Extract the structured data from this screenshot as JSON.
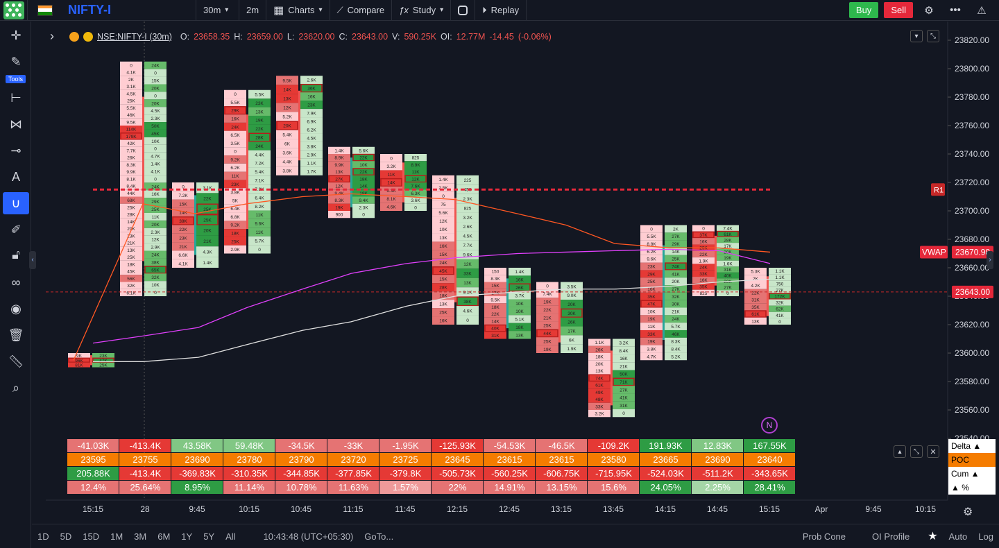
{
  "topbar": {
    "symbol": "NIFTY-I",
    "interval": "30m",
    "interval2": "2m",
    "charts_label": "Charts",
    "compare_label": "Compare",
    "study_label": "Study",
    "replay_label": "Replay",
    "buy_label": "Buy",
    "sell_label": "Sell",
    "flag_colors": [
      "#ff9933",
      "#ffffff",
      "#138808"
    ]
  },
  "left_toolbar": {
    "tools_label": "Tools",
    "icons": [
      "crosshair-icon",
      "pencil-icon",
      "fib-icon",
      "pattern-icon",
      "line-icon",
      "text-icon",
      "magnet-icon",
      "brush-icon",
      "lock-icon",
      "link-icon",
      "eye-icon",
      "trash-icon",
      "ruler-icon",
      "zoom-icon"
    ]
  },
  "legend": {
    "symbol": "NSE:NIFTY-I (30m)",
    "o_label": "O:",
    "o": "23658.35",
    "h_label": "H:",
    "h": "23659.00",
    "l_label": "L:",
    "l": "23620.00",
    "c_label": "C:",
    "c": "23643.00",
    "v_label": "V:",
    "v": "590.25K",
    "oi_label": "OI:",
    "oi": "12.77M",
    "chg": "-14.45",
    "chg_pct": "(-0.06%)"
  },
  "price_axis": {
    "labels": [
      "23820.00",
      "23800.00",
      "23780.00",
      "23760.00",
      "23740.00",
      "23720.00",
      "23700.00",
      "23680.00",
      "23660.00",
      "23640.00",
      "23620.00",
      "23600.00",
      "23580.00",
      "23560.00",
      "23540.00"
    ],
    "vwap_label": "VWAP",
    "vwap_value": "23670.98",
    "last_price": "23643.00",
    "r1_label": "R1"
  },
  "time_axis": [
    "15:15",
    "28",
    "9:45",
    "10:15",
    "10:45",
    "11:15",
    "11:45",
    "12:15",
    "12:45",
    "13:15",
    "13:45",
    "14:15",
    "14:45",
    "15:15",
    "Apr",
    "9:45",
    "10:15"
  ],
  "table": {
    "row_labels": [
      "Delta ▲",
      "POC",
      "Cum ▲",
      "▲ %"
    ],
    "delta": [
      "-41.03K",
      "-413.4K",
      "43.58K",
      "59.48K",
      "-34.5K",
      "-33K",
      "-1.95K",
      "-125.93K",
      "-54.53K",
      "-46.5K",
      "-109.2K",
      "191.93K",
      "12.83K",
      "167.55K"
    ],
    "poc": [
      "23595",
      "23755",
      "23690",
      "23780",
      "23790",
      "23720",
      "23725",
      "23645",
      "23615",
      "23615",
      "23580",
      "23665",
      "23690",
      "23640"
    ],
    "cum": [
      "205.88K",
      "-413.4K",
      "-369.83K",
      "-310.35K",
      "-344.85K",
      "-377.85K",
      "-379.8K",
      "-505.73K",
      "-560.25K",
      "-606.75K",
      "-715.95K",
      "-524.03K",
      "-511.2K",
      "-343.65K"
    ],
    "pct": [
      "12.4%",
      "25.64%",
      "8.95%",
      "11.14%",
      "10.78%",
      "11.63%",
      "1.57%",
      "22%",
      "14.91%",
      "13.15%",
      "15.6%",
      "24.05%",
      "2.25%",
      "28.41%"
    ]
  },
  "bottombar": {
    "ranges": [
      "1D",
      "5D",
      "15D",
      "1M",
      "3M",
      "6M",
      "1Y",
      "5Y",
      "All"
    ],
    "clock": "10:43:48 (UTC+05:30)",
    "goto": "GoTo...",
    "prob_cone": "Prob Cone",
    "oi_profile": "OI Profile",
    "auto": "Auto",
    "log": "Log"
  },
  "colors": {
    "bg": "#131722",
    "up": "#26a69a",
    "down": "#ef5350",
    "vwap": "#e040fb",
    "r1": "#e5283a",
    "orange": "#f57c00"
  },
  "footprint": [
    {
      "x": 0,
      "hi": 23600,
      "lo": 23590,
      "mode": "pair",
      "left": [
        "9K",
        "96K",
        "81K"
      ],
      "right": [
        "23K",
        "47K",
        "25K"
      ]
    },
    {
      "x": 1,
      "hi": 23805,
      "lo": 23640,
      "mode": "pair",
      "left": [
        "0",
        "4.1K",
        "2K",
        "3.1K",
        "4.5K",
        "25K",
        "5.5K",
        "46K",
        "9.5K",
        "114K",
        "179K",
        "42K",
        "7.7K",
        "26K",
        "8.3K",
        "9.9K",
        "8.1K",
        "8.4K",
        "44K",
        "68K",
        "25K",
        "28K",
        "14K",
        "29K",
        "23K",
        "21K",
        "13K",
        "25K",
        "18K",
        "45K",
        "56K",
        "32K",
        "6.1K"
      ],
      "right": [
        "24K",
        "0",
        "15K",
        "20K",
        "0",
        "20K",
        "4.5K",
        "2.3K",
        "50K",
        "45K",
        "10K",
        "0",
        "4.7K",
        "1.4K",
        "4.1K",
        "0",
        "24K",
        "16K",
        "29K",
        "25K",
        "11K",
        "20K",
        "2.3K",
        "12K",
        "2.9K",
        "24K",
        "38K",
        "65K",
        "32K",
        "10K",
        "0"
      ]
    },
    {
      "x": 2,
      "hi": 23720,
      "lo": 23660,
      "mode": "pair",
      "left": [
        "0",
        "7.2K",
        "15K",
        "14K",
        "39K",
        "22K",
        "23K",
        "21K",
        "6.6K",
        "4.1K"
      ],
      "right": [
        "3.1K",
        "22K",
        "25K",
        "25K",
        "20K",
        "21K",
        "4.3K",
        "1.4K"
      ]
    },
    {
      "x": 3,
      "hi": 23785,
      "lo": 23670,
      "mode": "pair",
      "left": [
        "0",
        "5.5K",
        "29K",
        "16K",
        "24K",
        "6.5K",
        "3.5K",
        "0",
        "9.2K",
        "6.2K",
        "11K",
        "23K",
        "3.8K",
        "5K",
        "6.4K",
        "6.8K",
        "9.2K",
        "18K",
        "25K",
        "2.9K"
      ],
      "right": [
        "5.5K",
        "23K",
        "13K",
        "19K",
        "22K",
        "28K",
        "24K",
        "4.4K",
        "7.2K",
        "5.4K",
        "7.1K",
        "7.9K",
        "6.4K",
        "8.2K",
        "11K",
        "9.6K",
        "11K",
        "5.7K",
        "0"
      ]
    },
    {
      "x": 4,
      "hi": 23795,
      "lo": 23725,
      "mode": "pair",
      "left": [
        "9.5K",
        "14K",
        "13K",
        "12K",
        "5.2K",
        "20K",
        "5.4K",
        "6K",
        "3.6K",
        "4.4K",
        "3.8K"
      ],
      "right": [
        "2.6K",
        "36K",
        "16K",
        "23K",
        "7.9K",
        "6.9K",
        "6.2K",
        "4.5K",
        "3.8K",
        "2.9K",
        "1.1K",
        "1.7K"
      ]
    },
    {
      "x": 5,
      "hi": 23745,
      "lo": 23695,
      "mode": "pair",
      "left": [
        "1.4K",
        "8.9K",
        "9.9K",
        "13K",
        "27K",
        "12K",
        "9.4K",
        "8.3K",
        "19K",
        "900"
      ],
      "right": [
        "5.6K",
        "22K",
        "10K",
        "22K",
        "18K",
        "14K",
        "18K",
        "9.4K",
        "2.3K",
        "0"
      ]
    },
    {
      "x": 6,
      "hi": 23740,
      "lo": 23700,
      "mode": "pair",
      "left": [
        "0",
        "3.2K",
        "11K",
        "14K",
        "6.3K",
        "8.1K",
        "4.6K"
      ],
      "right": [
        "825",
        "8.9K",
        "11K",
        "12K",
        "7.6K",
        "6.3K",
        "3.6K",
        "0"
      ]
    },
    {
      "x": 7,
      "hi": 23725,
      "lo": 23620,
      "mode": "pair",
      "left": [
        "1.4K",
        "2.5K",
        "0",
        "75",
        "5.6K",
        "12K",
        "10K",
        "13K",
        "16K",
        "15K",
        "24K",
        "45K",
        "15K",
        "28K",
        "18K",
        "13K",
        "25K",
        "16K"
      ],
      "right": [
        "225",
        "450",
        "2.3K",
        "825",
        "3.2K",
        "2.6K",
        "4.5K",
        "7.7K",
        "9.6K",
        "12K",
        "33K",
        "13K",
        "9.1K",
        "38K",
        "4.6K",
        "0"
      ]
    },
    {
      "x": 8,
      "hi": 23660,
      "lo": 23610,
      "mode": "pair",
      "left": [
        "150",
        "8.3K",
        "15K",
        "17K",
        "9.5K",
        "18K",
        "22K",
        "14K",
        "40K",
        "31K"
      ],
      "right": [
        "1.4K",
        "16K",
        "26K",
        "3.7K",
        "10K",
        "10K",
        "5.1K",
        "18K",
        "13K"
      ]
    },
    {
      "x": 9,
      "hi": 23650,
      "lo": 23600,
      "mode": "pair",
      "left": [
        "0",
        "7.4K",
        "19K",
        "22K",
        "21K",
        "25K",
        "44K",
        "25K",
        "19K"
      ],
      "right": [
        "3.5K",
        "9.0K",
        "20K",
        "30K",
        "26K",
        "17K",
        "6K",
        "1.9K"
      ]
    },
    {
      "x": 10,
      "hi": 23610,
      "lo": 23555,
      "mode": "pair",
      "left": [
        "1.1K",
        "26K",
        "18K",
        "20K",
        "13K",
        "74K",
        "61K",
        "49K",
        "48K",
        "33K",
        "3.2K"
      ],
      "right": [
        "3.2K",
        "8.4K",
        "16K",
        "21K",
        "50K",
        "71K",
        "27K",
        "41K",
        "31K",
        "0"
      ]
    },
    {
      "x": 11,
      "hi": 23690,
      "lo": 23595,
      "mode": "pair",
      "left": [
        "0",
        "5.5K",
        "8.8K",
        "6.2K",
        "9.6K",
        "23K",
        "29K",
        "25K",
        "16K",
        "35K",
        "47K",
        "10K",
        "19K",
        "11K",
        "33K",
        "19K",
        "3.8K",
        "4.7K"
      ],
      "right": [
        "2K",
        "27K",
        "29K",
        "14K",
        "25K",
        "74K",
        "41K",
        "20K",
        "27K",
        "32K",
        "30K",
        "21K",
        "24K",
        "5.7K",
        "46K",
        "8.3K",
        "8.4K",
        "5.2K"
      ]
    },
    {
      "x": 12,
      "hi": 23690,
      "lo": 23640,
      "mode": "pair",
      "left": [
        "0",
        "37K",
        "16K",
        "29K",
        "22K",
        "1.9K",
        "24K",
        "33K",
        "16K",
        "35K",
        "825"
      ],
      "right": [
        "7.4K",
        "61K",
        "28K",
        "17K",
        "20K",
        "19K",
        "1.6K",
        "31K",
        "40K",
        "23K",
        "27K",
        "0"
      ]
    },
    {
      "x": 13,
      "hi": 23660,
      "lo": 23620,
      "mode": "pair",
      "left": [
        "5.3K",
        "2K",
        "4.2K",
        "22K",
        "31K",
        "35K",
        "61K",
        "13K"
      ],
      "right": [
        "1.1K",
        "1.1K",
        "750",
        "27K",
        "172K",
        "32K",
        "62K",
        "41K",
        "0"
      ]
    }
  ]
}
